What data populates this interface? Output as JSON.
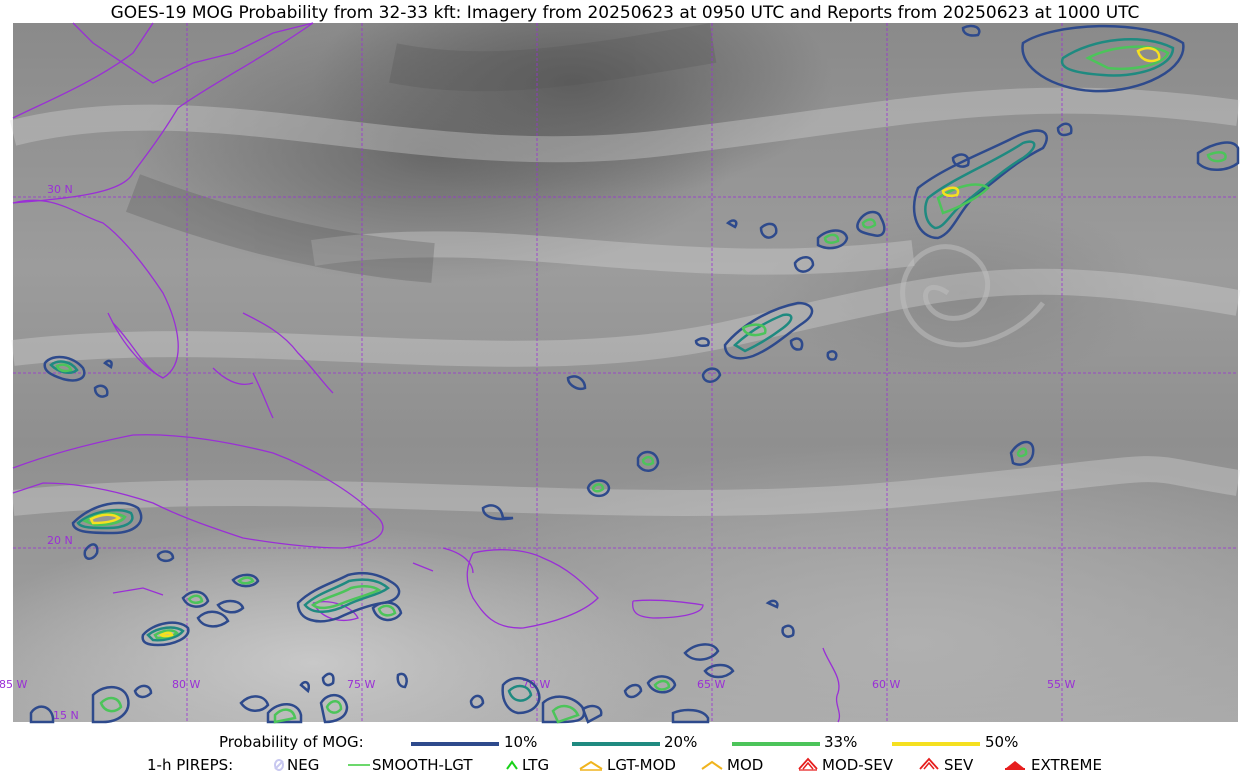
{
  "title": "GOES-19 MOG Probability from 32-33 kft: Imagery from 20250623 at 0950 UTC and Reports from 20250623 at 1000 UTC",
  "grid_labels": {
    "lat": [
      "30 N",
      "20 N",
      "15 N"
    ],
    "lon": [
      "85 W",
      "80 W",
      "75 W",
      "70 W",
      "65 W",
      "60 W",
      "55 W"
    ]
  },
  "legend": {
    "probability": {
      "label": "Probability of MOG:",
      "items": [
        {
          "label": "10%",
          "color": "#2e4a8c"
        },
        {
          "label": "20%",
          "color": "#1f8a80"
        },
        {
          "label": "33%",
          "color": "#4cc45a"
        },
        {
          "label": "50%",
          "color": "#f5e020"
        }
      ]
    },
    "pireps": {
      "label": "1-h PIREPS:",
      "items": [
        {
          "label": "NEG",
          "color": "#c8c8f0"
        },
        {
          "label": "SMOOTH-LGT",
          "color": "#3ccc3c"
        },
        {
          "label": "LTG",
          "color": "#19d219"
        },
        {
          "label": "LGT-MOD",
          "color": "#f0b41e"
        },
        {
          "label": "MOD",
          "color": "#f0b41e"
        },
        {
          "label": "MOD-SEV",
          "color": "#e61e1e"
        },
        {
          "label": "SEV",
          "color": "#e61e1e"
        },
        {
          "label": "EXTREME",
          "color": "#e61e1e"
        }
      ]
    }
  }
}
